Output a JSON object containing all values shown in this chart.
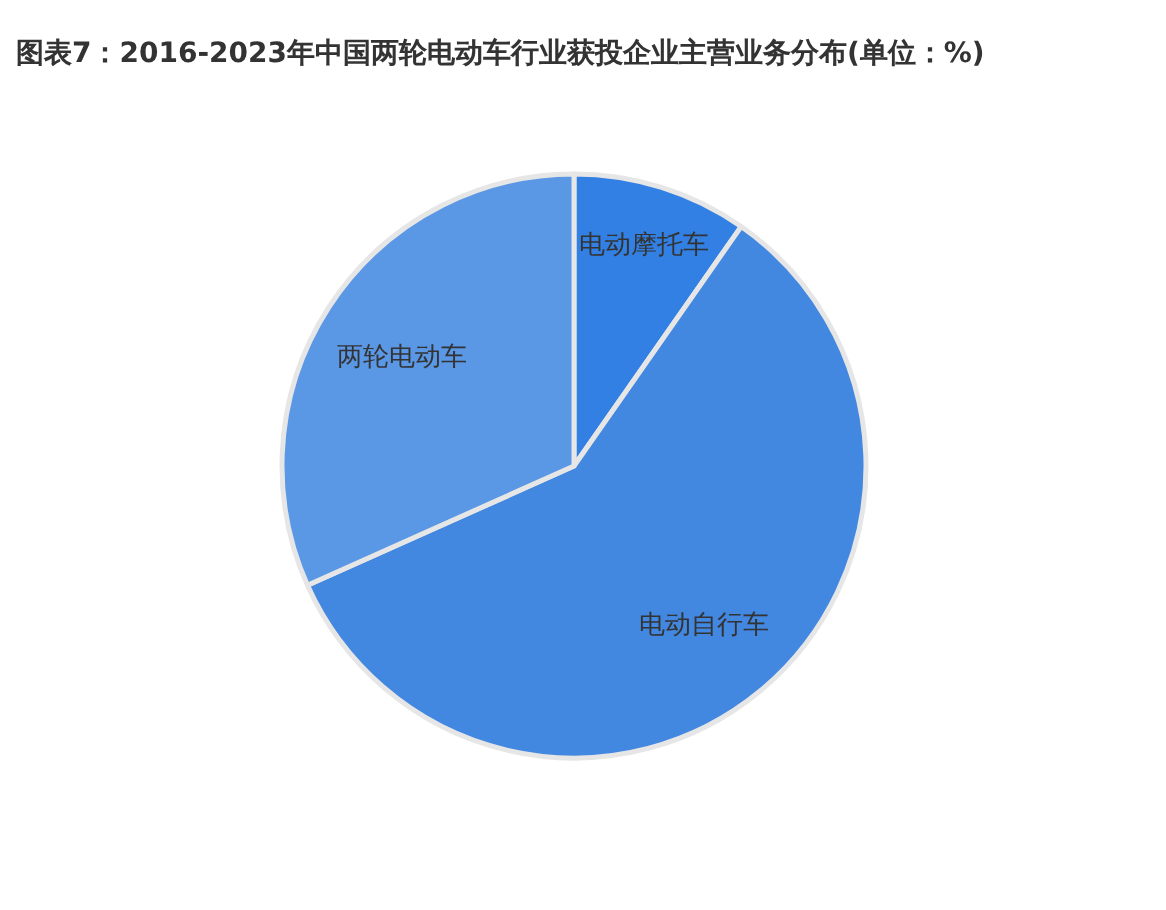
{
  "chart_data": {
    "type": "pie",
    "title": "图表7：2016-2023年中国两轮电动车行业获投企业主营业务分布(单位：%)",
    "categories": [
      "电动摩托车",
      "电动自行车",
      "两轮电动车"
    ],
    "values": [
      9.7,
      58.6,
      31.7
    ],
    "colors": [
      "#3280e3",
      "#4287e0",
      "#5a98e6"
    ]
  }
}
